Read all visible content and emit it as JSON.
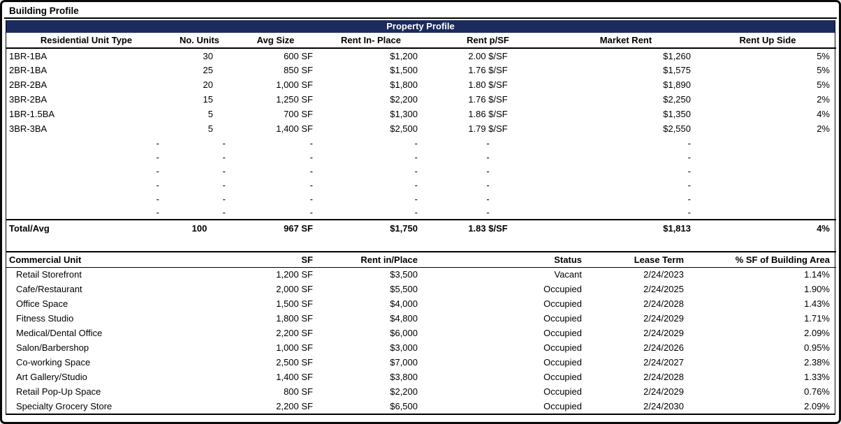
{
  "page_title": "Building Profile",
  "colors": {
    "section_band_bg": "#1c2b5e",
    "section_band_text": "#ffffff",
    "border": "#000000",
    "background": "#ffffff"
  },
  "residential_table": {
    "band_title": "Property Profile",
    "columns": [
      "Residential Unit Type",
      "No. Units",
      "Avg Size",
      "Rent In- Place",
      "Rent p/SF",
      "Market Rent",
      "Rent Up Side"
    ],
    "rows": [
      [
        "1BR-1BA",
        "30",
        "600 SF",
        "$1,200",
        "2.00 $/SF",
        "$1,260",
        "5%"
      ],
      [
        "2BR-1BA",
        "25",
        "850 SF",
        "$1,500",
        "1.76 $/SF",
        "$1,575",
        "5%"
      ],
      [
        "2BR-2BA",
        "20",
        "1,000 SF",
        "$1,800",
        "1.80 $/SF",
        "$1,890",
        "5%"
      ],
      [
        "3BR-2BA",
        "15",
        "1,250 SF",
        "$2,200",
        "1.76 $/SF",
        "$2,250",
        "2%"
      ],
      [
        "1BR-1.5BA",
        "5",
        "700 SF",
        "$1,300",
        "1.86 $/SF",
        "$1,350",
        "4%"
      ],
      [
        "3BR-3BA",
        "5",
        "1,400 SF",
        "$2,500",
        "1.79 $/SF",
        "$2,550",
        "2%"
      ]
    ],
    "empty_row_count": 6,
    "empty_row": [
      "-",
      "-",
      "-",
      "-",
      "-",
      "-",
      ""
    ],
    "total_row": [
      "Total/Avg",
      "100",
      "967 SF",
      "$1,750",
      "1.83 $/SF",
      "$1,813",
      "4%"
    ]
  },
  "commercial_table": {
    "columns": [
      "Commercial Unit",
      "SF",
      "Rent in/Place",
      "Status",
      "Lease Term",
      "% SF of Building Area"
    ],
    "rows": [
      [
        "Retail Storefront",
        "1,200 SF",
        "$3,500",
        "Vacant",
        "2/24/2023",
        "1.14%"
      ],
      [
        "Cafe/Restaurant",
        "2,000 SF",
        "$5,500",
        "Occupied",
        "2/24/2025",
        "1.90%"
      ],
      [
        "Office Space",
        "1,500 SF",
        "$4,000",
        "Occupied",
        "2/24/2028",
        "1.43%"
      ],
      [
        "Fitness Studio",
        "1,800 SF",
        "$4,800",
        "Occupied",
        "2/24/2029",
        "1.71%"
      ],
      [
        "Medical/Dental Office",
        "2,200 SF",
        "$6,000",
        "Occupied",
        "2/24/2029",
        "2.09%"
      ],
      [
        "Salon/Barbershop",
        "1,000 SF",
        "$3,000",
        "Occupied",
        "2/24/2026",
        "0.95%"
      ],
      [
        "Co-working Space",
        "2,500 SF",
        "$7,000",
        "Occupied",
        "2/24/2027",
        "2.38%"
      ],
      [
        "Art Gallery/Studio",
        "1,400 SF",
        "$3,800",
        "Occupied",
        "2/24/2028",
        "1.33%"
      ],
      [
        "Retail Pop-Up Space",
        "800 SF",
        "$2,200",
        "Occupied",
        "2/24/2029",
        "0.76%"
      ],
      [
        "Specialty Grocery Store",
        "2,200 SF",
        "$6,500",
        "Occupied",
        "2/24/2030",
        "2.09%"
      ]
    ]
  }
}
